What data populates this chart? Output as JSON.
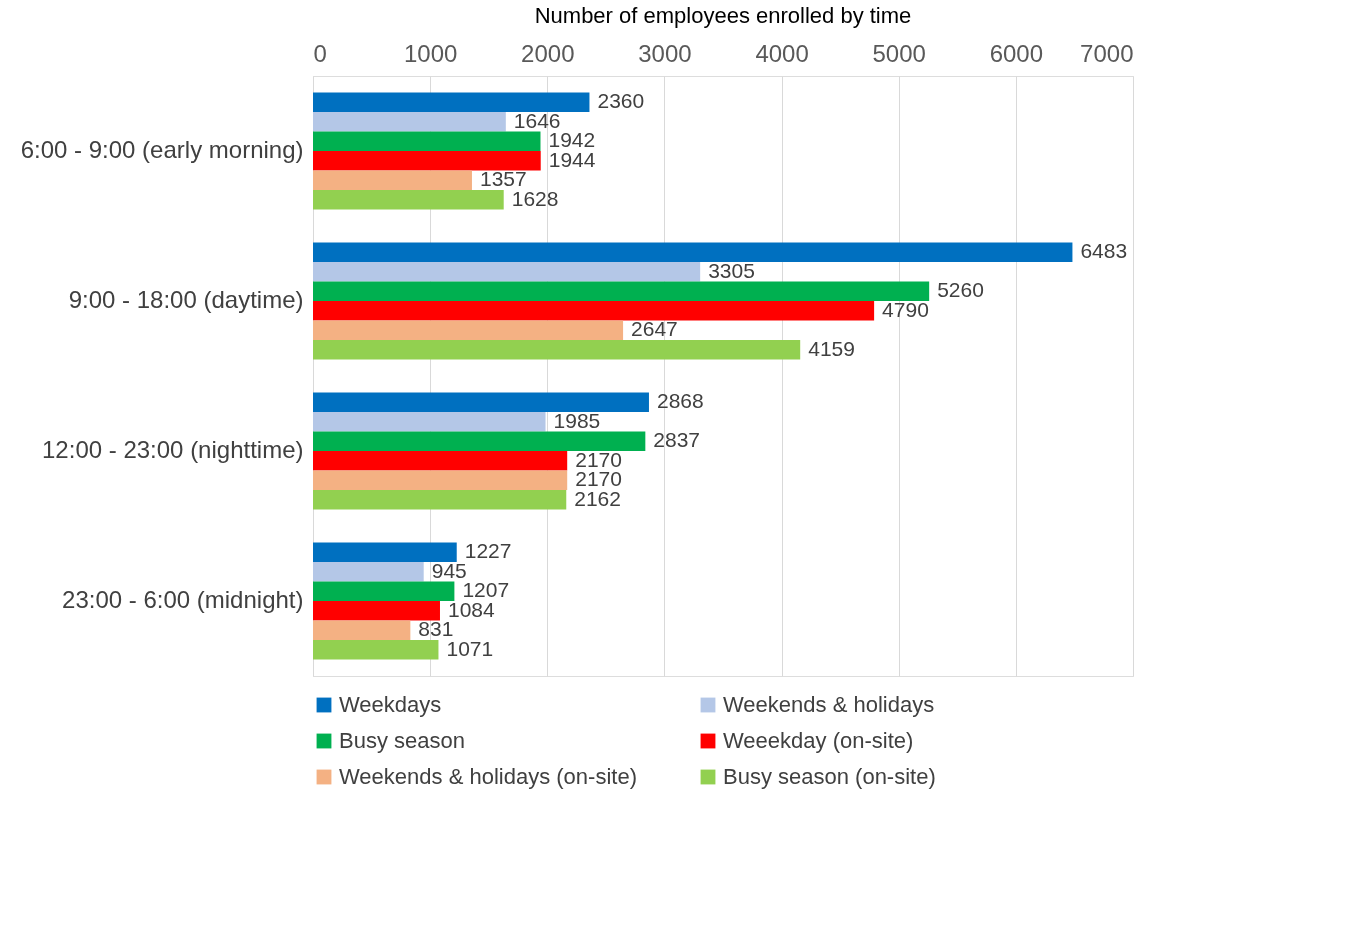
{
  "chart_data": {
    "type": "bar",
    "orientation": "horizontal",
    "title": "Number of employees enrolled by time",
    "categories": [
      "6:00 - 9:00 (early morning)",
      "9:00 - 18:00 (daytime)",
      "12:00 - 23:00 (nighttime)",
      "23:00 - 6:00 (midnight)"
    ],
    "series": [
      {
        "name": "Weekdays",
        "color": "#0070c0",
        "values": [
          2360,
          6483,
          2868,
          1227
        ]
      },
      {
        "name": "Weekends & holidays",
        "color": "#b4c7e7",
        "values": [
          1646,
          3305,
          1985,
          945
        ]
      },
      {
        "name": "Busy season",
        "color": "#00b050",
        "values": [
          1942,
          5260,
          2837,
          1207
        ]
      },
      {
        "name": "Weeekday (on-site)",
        "color": "#ff0000",
        "values": [
          1944,
          4790,
          2170,
          1084
        ]
      },
      {
        "name": "Weekends & holidays (on-site)",
        "color": "#f4b183",
        "values": [
          1357,
          2647,
          2170,
          831
        ]
      },
      {
        "name": "Busy season (on-site)",
        "color": "#92d050",
        "values": [
          1628,
          4159,
          2162,
          1071
        ]
      }
    ],
    "xlim": [
      0,
      7000
    ],
    "xticks": [
      0,
      1000,
      2000,
      3000,
      4000,
      5000,
      6000,
      7000
    ],
    "grid": "x",
    "legend": "bottom",
    "data_labels": true
  }
}
